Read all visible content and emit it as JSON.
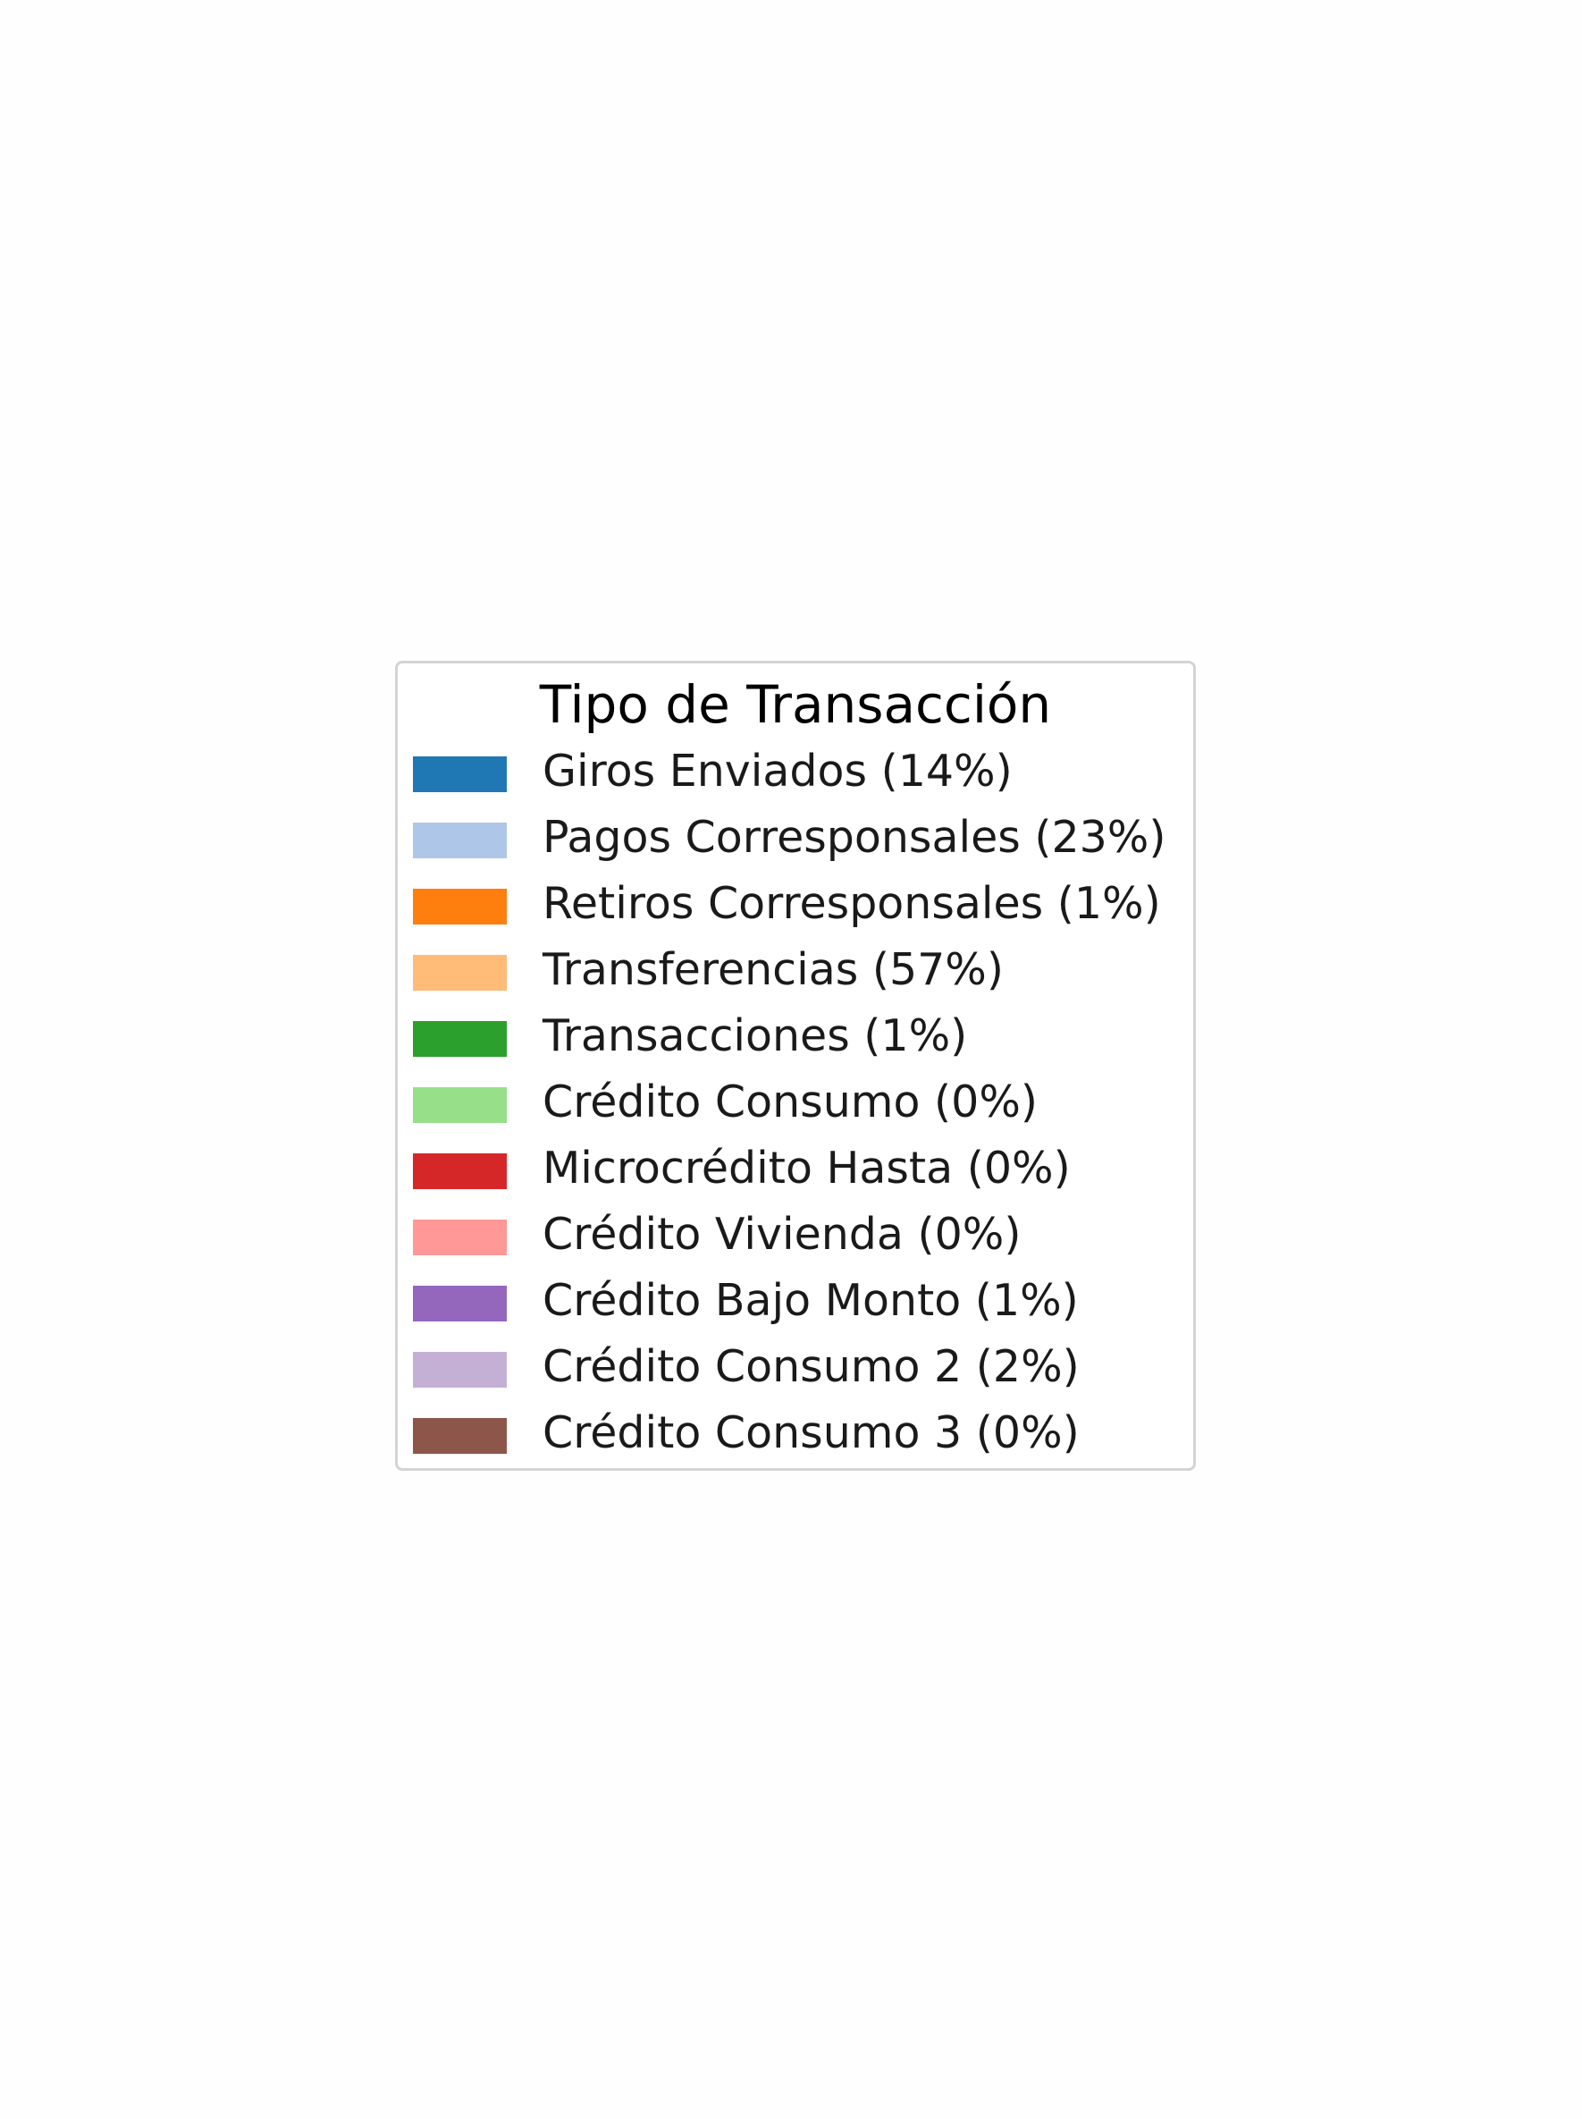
{
  "chart_data": {
    "type": "pie",
    "legend_title": "Tipo de Transacción",
    "legend_placement": "center",
    "categories": [
      "Giros Enviados (14%)",
      "Pagos Corresponsales (23%)",
      "Retiros Corresponsales (1%)",
      "Transferencias (57%)",
      "Transacciones (1%)",
      "Crédito Consumo (0%)",
      "Microcrédito Hasta (0%)",
      "Crédito Vivienda (0%)",
      "Crédito Bajo Monto (1%)",
      "Crédito Consumo 2 (2%)",
      "Crédito Consumo 3 (0%)"
    ],
    "values": [
      14,
      23,
      1,
      57,
      1,
      0,
      0,
      0,
      1,
      2,
      0
    ],
    "colors": [
      "#1f77b4",
      "#aec7e8",
      "#ff7f0e",
      "#ffbb78",
      "#2ca02c",
      "#98df8a",
      "#d62728",
      "#ff9896",
      "#9467bd",
      "#c5b0d5",
      "#8c564b"
    ]
  }
}
